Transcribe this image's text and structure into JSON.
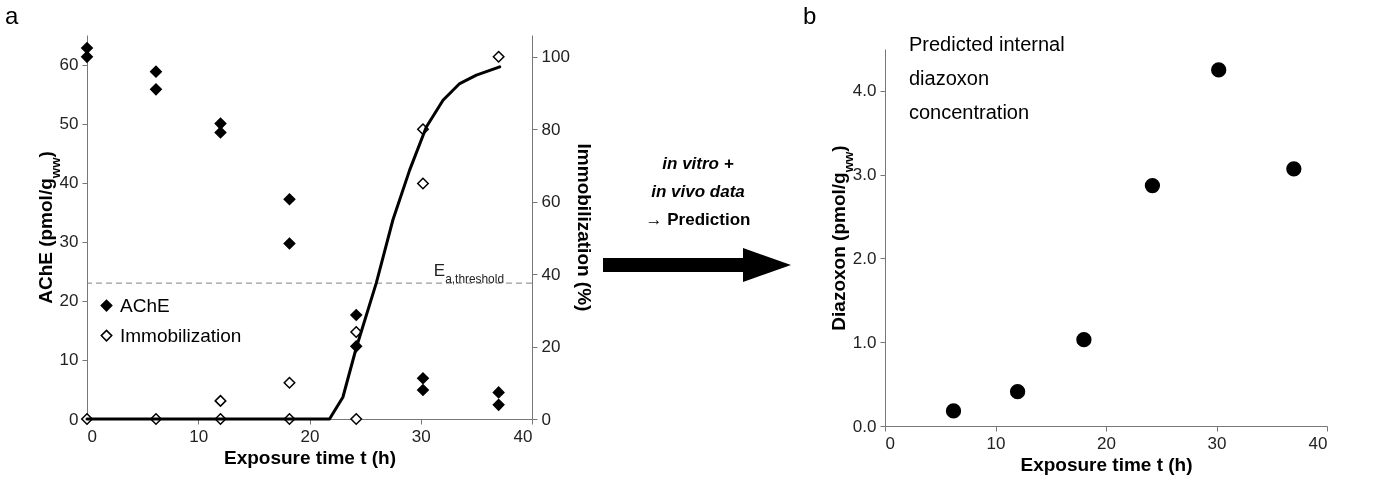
{
  "chart_data": [
    {
      "type": "scatter",
      "title": "a",
      "xlabel": "Exposure time t (h)",
      "ylabel": "AChE (pmol/g$_{ww}$)",
      "y2label": "Immobilization (%)",
      "xlim": [
        0,
        40
      ],
      "xticks": [
        0,
        10,
        20,
        30,
        40
      ],
      "ylim": [
        0,
        65
      ],
      "yticks": [
        0,
        10,
        20,
        30,
        40,
        50,
        60
      ],
      "y2lim": [
        0,
        106
      ],
      "y2ticks": [
        0,
        20,
        40,
        60,
        80,
        100
      ],
      "legend": "bottom left",
      "marker": "diamond",
      "annotations": [
        "in vitro +\nin vivo data\n→ Prediction"
      ],
      "ref_lines": [
        {
          "axis": "y",
          "value": 23,
          "label": "E$_{a,threshold}$",
          "color": "#808080",
          "line_style": "dashed"
        }
      ],
      "series": [
        {
          "name": "AChE",
          "color": "#000000",
          "x": [
            0,
            0,
            6.2,
            6.2,
            12,
            12,
            18.2,
            18.2,
            24.2,
            24.2,
            30.2,
            30.2,
            37,
            37
          ],
          "values": [
            62.8,
            61.3,
            58.8,
            55.8,
            50,
            48.5,
            37.2,
            29.7,
            17.6,
            12.3,
            6.9,
            4.9,
            4.5,
            2.4
          ]
        },
        {
          "name": "Immobilization",
          "color": "#000000",
          "axis": "y2",
          "x": [
            0,
            6.2,
            12,
            12,
            18.2,
            18.2,
            24.2,
            24.2,
            30.2,
            30.2,
            37
          ],
          "values": [
            0,
            0,
            0,
            5,
            0,
            10,
            0,
            24,
            80,
            65,
            100
          ]
        },
        {
          "type": "line",
          "color": "#000000",
          "axis": "y2",
          "marker": "none",
          "x": [
            0,
            21.8,
            23,
            24.2,
            26,
            27.5,
            29,
            30.5,
            32,
            33.5,
            35,
            37.1
          ],
          "values": [
            0,
            0,
            6,
            19.6,
            37.5,
            55,
            68.7,
            80.6,
            88,
            92.6,
            94.9,
            97.2
          ]
        }
      ]
    },
    {
      "type": "scatter",
      "title": "b",
      "xlabel": "Exposure time t (h)",
      "ylabel": "Diazoxon (pmol/g$_{ww}$)",
      "xlim": [
        0,
        40
      ],
      "xticks": [
        0,
        10,
        20,
        30,
        40
      ],
      "ylim": [
        0,
        4.5
      ],
      "yticks": [
        {
          "value": 0,
          "label": "0.0"
        },
        {
          "value": 1,
          "label": "1.0"
        },
        {
          "value": 2,
          "label": "2.0"
        },
        {
          "value": 3,
          "label": "3.0"
        },
        {
          "value": 4,
          "label": "4.0"
        }
      ],
      "marker": "circle",
      "annotations": [
        "Predicted internal\ndiazoxon\nconcentration"
      ],
      "series": [
        {
          "color": "#000000",
          "x": [
            6.2,
            12,
            18,
            24.2,
            30.2,
            37
          ],
          "values": [
            0.18,
            0.41,
            1.03,
            2.87,
            4.25,
            3.07
          ]
        }
      ]
    }
  ]
}
